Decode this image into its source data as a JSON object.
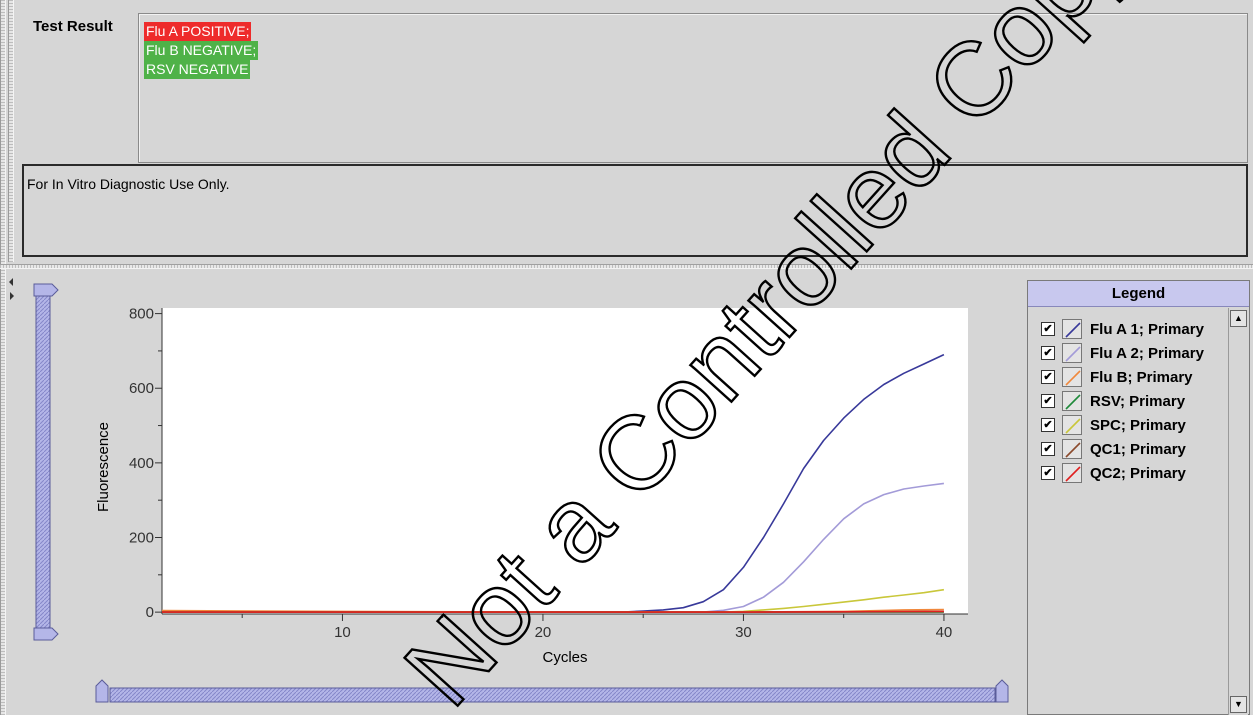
{
  "test_result": {
    "label": "Test Result",
    "lines": [
      {
        "text": "Flu A POSITIVE;",
        "color": "#ee2b2b"
      },
      {
        "text": "Flu B NEGATIVE;",
        "color": "#4fb248"
      },
      {
        "text": "RSV NEGATIVE",
        "color": "#4fb248"
      }
    ]
  },
  "notice": "For In Vitro Diagnostic Use Only.",
  "legend": {
    "title": "Legend",
    "items": [
      {
        "label": "Flu A 1; Primary",
        "color": "#38399a",
        "checked": true
      },
      {
        "label": "Flu A 2; Primary",
        "color": "#a39bd8",
        "checked": true
      },
      {
        "label": "Flu B; Primary",
        "color": "#f0883c",
        "checked": true
      },
      {
        "label": "RSV; Primary",
        "color": "#1f8a3a",
        "checked": true
      },
      {
        "label": "SPC; Primary",
        "color": "#c9c73a",
        "checked": true
      },
      {
        "label": "QC1; Primary",
        "color": "#8b4a2c",
        "checked": true
      },
      {
        "label": "QC2; Primary",
        "color": "#e02020",
        "checked": true
      }
    ]
  },
  "watermark": "Not a Controlled Copy",
  "chart_data": {
    "type": "line",
    "xlabel": "Cycles",
    "ylabel": "Fluorescence",
    "xlim": [
      1,
      41.2
    ],
    "ylim": [
      -5,
      815
    ],
    "x_ticks": [
      10,
      20,
      30,
      40
    ],
    "y_ticks": [
      0,
      200,
      400,
      600,
      800
    ],
    "series": [
      {
        "name": "Flu A 1; Primary",
        "color": "#38399a",
        "x": [
          1,
          10,
          20,
          24,
          25,
          26,
          27,
          28,
          29,
          30,
          31,
          32,
          33,
          34,
          35,
          36,
          37,
          38,
          39,
          40
        ],
        "y": [
          0,
          0,
          0,
          0,
          3,
          6,
          12,
          28,
          60,
          120,
          200,
          290,
          385,
          460,
          520,
          570,
          610,
          640,
          665,
          690
        ]
      },
      {
        "name": "Flu A 2; Primary",
        "color": "#a39bd8",
        "x": [
          1,
          10,
          20,
          28,
          29,
          30,
          31,
          32,
          33,
          34,
          35,
          36,
          37,
          38,
          39,
          40
        ],
        "y": [
          0,
          0,
          0,
          0,
          5,
          15,
          40,
          80,
          135,
          195,
          250,
          290,
          315,
          330,
          338,
          345
        ]
      },
      {
        "name": "Flu B; Primary",
        "color": "#f0883c",
        "x": [
          1,
          10,
          20,
          30,
          35,
          38,
          40
        ],
        "y": [
          4,
          2,
          0,
          0,
          2,
          6,
          7
        ]
      },
      {
        "name": "RSV; Primary",
        "color": "#1f8a3a",
        "x": [
          1,
          10,
          20,
          30,
          40
        ],
        "y": [
          0,
          0,
          0,
          0,
          0
        ]
      },
      {
        "name": "SPC; Primary",
        "color": "#c9c73a",
        "x": [
          1,
          10,
          20,
          29,
          30,
          31,
          32,
          33,
          34,
          35,
          36,
          37,
          38,
          39,
          40
        ],
        "y": [
          0,
          0,
          0,
          0,
          2,
          6,
          10,
          15,
          21,
          27,
          33,
          40,
          46,
          52,
          60
        ]
      },
      {
        "name": "QC1; Primary",
        "color": "#8b4a2c",
        "x": [
          1,
          10,
          20,
          30,
          35,
          40
        ],
        "y": [
          0,
          0,
          0,
          0,
          1,
          2
        ]
      },
      {
        "name": "QC2; Primary",
        "color": "#e02020",
        "x": [
          1,
          10,
          20,
          30,
          35,
          40
        ],
        "y": [
          0,
          0,
          0,
          0,
          1,
          2
        ]
      }
    ]
  }
}
